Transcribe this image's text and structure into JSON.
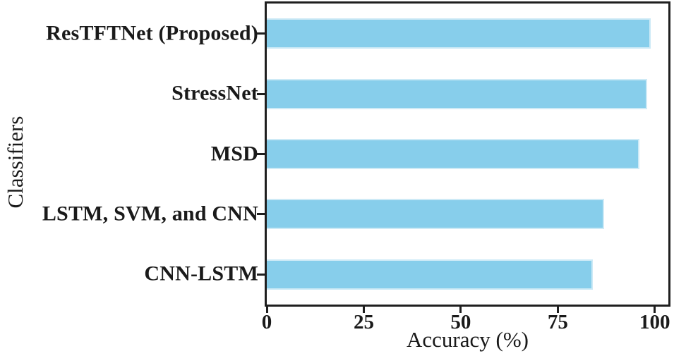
{
  "chart_data": {
    "type": "bar",
    "orientation": "horizontal",
    "title": "",
    "categories": [
      "ResTFTNet (Proposed)",
      "StressNet",
      "MSD",
      "LSTM, SVM, and CNN",
      "CNN-LSTM"
    ],
    "values": [
      99,
      98,
      96,
      87,
      84
    ],
    "xlabel": "Accuracy (%)",
    "ylabel": "Classifiers",
    "xticks": [
      0,
      25,
      50,
      75,
      100
    ],
    "xlim": [
      0,
      103.5
    ],
    "grid": false,
    "legend": null,
    "bar_color": "#87CEEB",
    "bar_edge_color": "#cdeaf6",
    "axis_color": "#1f1f1f",
    "text_color": "#1a1a1a"
  }
}
